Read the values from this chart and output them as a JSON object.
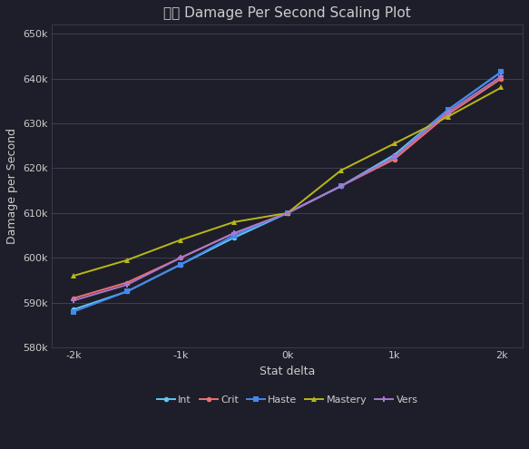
{
  "title": "霜燃 Damage Per Second Scaling Plot",
  "xlabel": "Stat delta",
  "ylabel": "Damage per Second",
  "bg_color": "#1e1e2a",
  "text_color": "#cccccc",
  "x_values": [
    -2000,
    -1500,
    -1000,
    -500,
    0,
    500,
    1000,
    1500,
    2000
  ],
  "series": [
    {
      "name": "Int",
      "color": "#60c8f0",
      "marker": "o",
      "markersize": 4,
      "values": [
        588500,
        592500,
        598500,
        604500,
        610000,
        616000,
        623000,
        633000,
        641500
      ]
    },
    {
      "name": "Crit",
      "color": "#f07070",
      "marker": "o",
      "markersize": 4,
      "values": [
        591000,
        594500,
        600000,
        605500,
        610000,
        616000,
        622000,
        632000,
        640000
      ]
    },
    {
      "name": "Haste",
      "color": "#4488ee",
      "marker": "s",
      "markersize": 4,
      "values": [
        588000,
        592500,
        598500,
        605000,
        610000,
        616000,
        622500,
        633000,
        641500
      ]
    },
    {
      "name": "Mastery",
      "color": "#b8b818",
      "marker": "^",
      "markersize": 5,
      "values": [
        596000,
        599500,
        604000,
        608000,
        610000,
        619500,
        625500,
        631500,
        638000
      ]
    },
    {
      "name": "Vers",
      "color": "#a878cc",
      "marker": "P",
      "markersize": 4,
      "values": [
        590500,
        594000,
        600000,
        605500,
        610000,
        616000,
        622500,
        632500,
        640500
      ]
    }
  ],
  "xlim": [
    -2200,
    2200
  ],
  "ylim": [
    580000,
    652000
  ],
  "xticks": [
    -2000,
    -1000,
    0,
    1000,
    2000
  ],
  "yticks": [
    580000,
    590000,
    600000,
    610000,
    620000,
    630000,
    640000,
    650000
  ],
  "title_fontsize": 11,
  "label_fontsize": 9,
  "tick_fontsize": 8,
  "legend_fontsize": 8
}
